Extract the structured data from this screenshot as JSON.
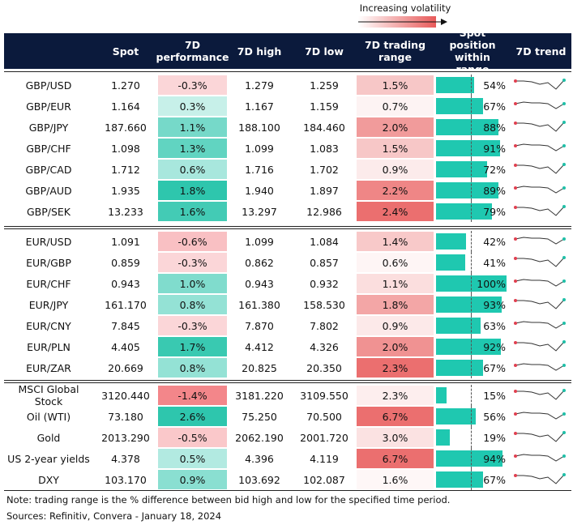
{
  "legend": {
    "label": "Increasing volatility"
  },
  "header": [
    "Spot",
    "7D performance",
    "7D high",
    "7D low",
    "7D trading range",
    "Spot position within range",
    "7D trend"
  ],
  "groups": [
    [
      [
        "GBP/USD",
        "1.270",
        "-0.3%",
        "1.279",
        "1.259",
        "1.5%",
        "54%"
      ],
      [
        "GBP/EUR",
        "1.164",
        "0.3%",
        "1.167",
        "1.159",
        "0.7%",
        "67%"
      ],
      [
        "GBP/JPY",
        "187.660",
        "1.1%",
        "188.100",
        "184.460",
        "2.0%",
        "88%"
      ],
      [
        "GBP/CHF",
        "1.098",
        "1.3%",
        "1.099",
        "1.083",
        "1.5%",
        "91%"
      ],
      [
        "GBP/CAD",
        "1.712",
        "0.6%",
        "1.716",
        "1.702",
        "0.9%",
        "72%"
      ],
      [
        "GBP/AUD",
        "1.935",
        "1.8%",
        "1.940",
        "1.897",
        "2.2%",
        "89%"
      ],
      [
        "GBP/SEK",
        "13.233",
        "1.6%",
        "13.297",
        "12.986",
        "2.4%",
        "79%"
      ]
    ],
    [
      [
        "EUR/USD",
        "1.091",
        "-0.6%",
        "1.099",
        "1.084",
        "1.4%",
        "42%"
      ],
      [
        "EUR/GBP",
        "0.859",
        "-0.3%",
        "0.862",
        "0.857",
        "0.6%",
        "41%"
      ],
      [
        "EUR/CHF",
        "0.943",
        "1.0%",
        "0.943",
        "0.932",
        "1.1%",
        "100%"
      ],
      [
        "EUR/JPY",
        "161.170",
        "0.8%",
        "161.380",
        "158.530",
        "1.8%",
        "93%"
      ],
      [
        "EUR/CNY",
        "7.845",
        "-0.3%",
        "7.870",
        "7.802",
        "0.9%",
        "63%"
      ],
      [
        "EUR/PLN",
        "4.405",
        "1.7%",
        "4.412",
        "4.326",
        "2.0%",
        "92%"
      ],
      [
        "EUR/ZAR",
        "20.669",
        "0.8%",
        "20.825",
        "20.350",
        "2.3%",
        "67%"
      ]
    ],
    [
      [
        "MSCI Global Stock",
        "3120.440",
        "-1.4%",
        "3181.220",
        "3109.550",
        "2.3%",
        "15%"
      ],
      [
        "Oil (WTI)",
        "73.180",
        "2.6%",
        "75.250",
        "70.500",
        "6.7%",
        "56%"
      ],
      [
        "Gold",
        "2013.290",
        "-0.5%",
        "2062.190",
        "2001.720",
        "3.0%",
        "19%"
      ],
      [
        "US 2-year yields",
        "4.378",
        "0.5%",
        "4.396",
        "4.119",
        "6.7%",
        "94%"
      ],
      [
        "DXY",
        "103.170",
        "0.9%",
        "103.692",
        "102.087",
        "1.6%",
        "67%"
      ]
    ]
  ],
  "notes": [
    "Note: trading range is the % difference between bid high and low for the specified time period.",
    "Sources: Refinitiv, Convera - January 18, 2024"
  ]
}
